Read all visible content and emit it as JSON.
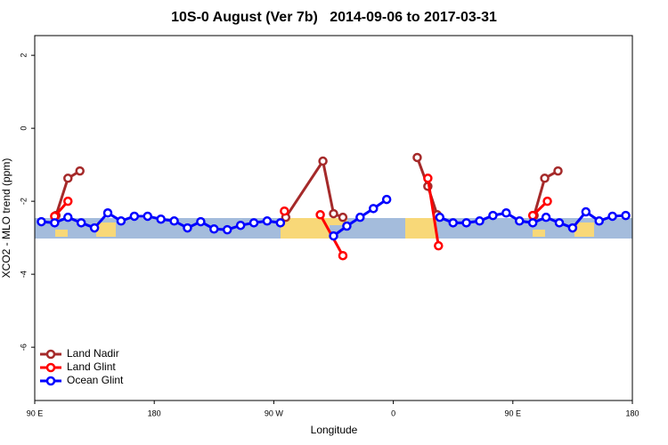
{
  "chart_data": {
    "type": "line",
    "title": "10S-0 August (Ver 7b)   2014-09-06 to 2017-03-31",
    "x_label": "Longitude",
    "y_label": "XCO2 - MLO trend (ppm)",
    "xlim": [
      90,
      540
    ],
    "ylim": [
      -7.46,
      2.54
    ],
    "xticks": [
      {
        "value": 90,
        "label": "90 E"
      },
      180,
      {
        "value": 270,
        "label": "90 W"
      },
      {
        "value": 360,
        "label": "0"
      },
      {
        "value": 450,
        "label": "90 E"
      },
      {
        "value": 540,
        "label": "180"
      }
    ],
    "yticks": [
      2,
      0,
      -2,
      -4,
      -6
    ],
    "legend": "bottom-left",
    "series": [
      {
        "name": "Land Nadir",
        "color": "#a52a2a",
        "x": [
          106,
          115,
          124,
          null,
          279,
          307,
          315,
          322,
          null,
          378,
          386,
          393,
          null,
          466,
          474,
          484
        ],
        "values": [
          -2.39,
          -1.37,
          -1.17,
          null,
          -2.44,
          -0.9,
          -2.34,
          -2.44,
          null,
          -0.8,
          -1.59,
          -2.37,
          null,
          -2.39,
          -1.37,
          -1.17
        ]
      },
      {
        "name": "Land Glint",
        "color": "#ff0000",
        "x": [
          105,
          115,
          null,
          278,
          null,
          305,
          322,
          null,
          386,
          394,
          null,
          465,
          476
        ],
        "values": [
          -2.41,
          -2.0,
          null,
          -2.27,
          null,
          -2.37,
          -3.49,
          null,
          -1.37,
          -3.22,
          null,
          -2.39,
          -2.0
        ]
      },
      {
        "name": "Ocean Glint",
        "color": "#0000ff",
        "x": [
          95,
          105,
          115,
          125,
          135,
          145,
          155,
          165,
          175,
          185,
          195,
          205,
          215,
          225,
          235,
          245,
          255,
          265,
          275,
          null,
          315,
          325,
          335,
          345,
          355,
          null,
          395,
          405,
          415,
          425,
          435,
          445,
          455,
          465,
          475,
          485,
          495,
          505,
          515,
          525,
          535
        ],
        "values": [
          -2.56,
          -2.59,
          -2.44,
          -2.59,
          -2.73,
          -2.32,
          -2.54,
          -2.41,
          -2.41,
          -2.49,
          -2.54,
          -2.73,
          -2.56,
          -2.76,
          -2.78,
          -2.66,
          -2.59,
          -2.54,
          -2.59,
          null,
          -2.95,
          -2.68,
          -2.44,
          -2.2,
          -1.95,
          null,
          -2.44,
          -2.59,
          -2.59,
          -2.54,
          -2.39,
          -2.32,
          -2.54,
          -2.59,
          -2.44,
          -2.59,
          -2.73,
          -2.29,
          -2.54,
          -2.41,
          -2.39
        ]
      }
    ]
  }
}
